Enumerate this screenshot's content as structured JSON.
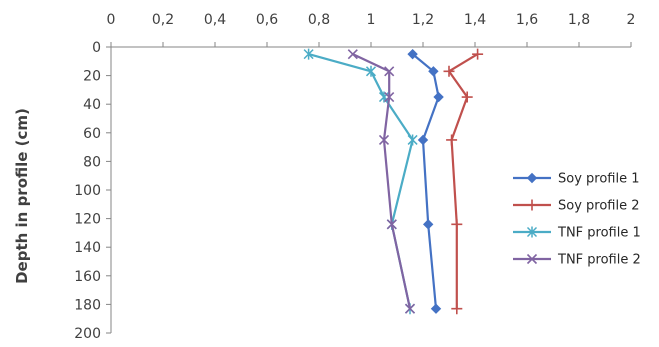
{
  "chart_data": {
    "type": "line",
    "title": "",
    "xlabel": "",
    "ylabel": "Depth in profile (cm)",
    "xlim": [
      0,
      2
    ],
    "ylim": [
      0,
      200
    ],
    "y_inverted": true,
    "x_axis_position": "top",
    "decimal_separator": ",",
    "x_ticks": [
      "0",
      "0,2",
      "0,4",
      "0,6",
      "0,8",
      "1",
      "1,2",
      "1,4",
      "1,6",
      "1,8",
      "2"
    ],
    "y_ticks": [
      "0",
      "20",
      "40",
      "60",
      "80",
      "100",
      "120",
      "140",
      "160",
      "180",
      "200"
    ],
    "grid": false,
    "legend_position": "right",
    "series": [
      {
        "name": "Soy profile 1",
        "color": "#4472C4",
        "marker": "diamond",
        "points": [
          [
            1.16,
            5
          ],
          [
            1.24,
            17
          ],
          [
            1.26,
            35
          ],
          [
            1.2,
            65
          ],
          [
            1.22,
            124
          ],
          [
            1.25,
            183
          ]
        ]
      },
      {
        "name": "Soy profile 2",
        "color": "#C0504D",
        "marker": "plus",
        "points": [
          [
            1.41,
            5
          ],
          [
            1.3,
            17
          ],
          [
            1.37,
            35
          ],
          [
            1.31,
            65
          ],
          [
            1.33,
            124
          ],
          [
            1.33,
            183
          ]
        ]
      },
      {
        "name": "TNF profile 1",
        "color": "#4BACC6",
        "marker": "star",
        "points": [
          [
            0.76,
            5
          ],
          [
            1.0,
            17
          ],
          [
            1.05,
            35
          ],
          [
            1.16,
            65
          ],
          [
            1.08,
            124
          ],
          [
            1.15,
            183
          ]
        ]
      },
      {
        "name": "TNF profile 2",
        "color": "#8064A2",
        "marker": "x",
        "points": [
          [
            0.93,
            5
          ],
          [
            1.07,
            17
          ],
          [
            1.07,
            35
          ],
          [
            1.05,
            65
          ],
          [
            1.08,
            124
          ],
          [
            1.15,
            183
          ]
        ]
      }
    ]
  }
}
